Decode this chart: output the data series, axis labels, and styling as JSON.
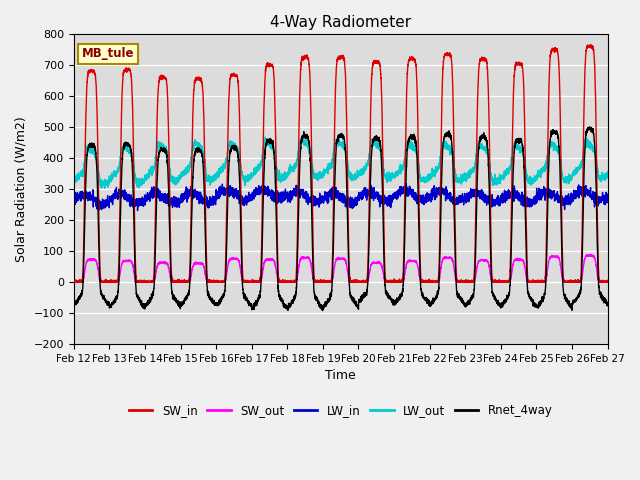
{
  "title": "4-Way Radiometer",
  "xlabel": "Time",
  "ylabel": "Solar Radiation (W/m2)",
  "ylim": [
    -200,
    800
  ],
  "xlim": [
    0,
    15
  ],
  "bg_color": "#dcdcdc",
  "fig_bg": "#f0f0f0",
  "annotation_label": "MB_tule",
  "annotation_bg": "#ffffcc",
  "annotation_border": "#aa8800",
  "x_tick_labels": [
    "Feb 12",
    "Feb 13",
    "Feb 14",
    "Feb 15",
    "Feb 16",
    "Feb 17",
    "Feb 18",
    "Feb 19",
    "Feb 20",
    "Feb 21",
    "Feb 22",
    "Feb 23",
    "Feb 24",
    "Feb 25",
    "Feb 26",
    "Feb 27"
  ],
  "yticks": [
    -200,
    -100,
    0,
    100,
    200,
    300,
    400,
    500,
    600,
    700,
    800
  ],
  "series": {
    "SW_in": {
      "color": "#dd0000",
      "lw": 1.0
    },
    "SW_out": {
      "color": "#ff00ff",
      "lw": 1.0
    },
    "LW_in": {
      "color": "#0000cc",
      "lw": 1.0
    },
    "LW_out": {
      "color": "#00cccc",
      "lw": 1.0
    },
    "Rnet_4way": {
      "color": "#000000",
      "lw": 1.0
    }
  },
  "legend_entries": [
    "SW_in",
    "SW_out",
    "LW_in",
    "LW_out",
    "Rnet_4way"
  ],
  "legend_colors": [
    "#dd0000",
    "#ff00ff",
    "#0000cc",
    "#00cccc",
    "#000000"
  ],
  "sw_in_peaks": [
    680,
    685,
    660,
    655,
    668,
    700,
    725,
    725,
    710,
    720,
    735,
    720,
    705,
    748,
    760
  ],
  "sw_out_peaks": [
    72,
    68,
    62,
    60,
    75,
    72,
    78,
    75,
    62,
    68,
    78,
    70,
    72,
    82,
    85
  ],
  "lw_in_base": [
    265,
    268,
    270,
    272,
    280,
    285,
    275,
    270,
    275,
    280,
    278,
    272,
    270,
    275,
    278
  ],
  "lw_out_base": [
    335,
    340,
    345,
    350,
    352,
    355,
    360,
    358,
    355,
    350,
    348,
    345,
    345,
    350,
    355
  ],
  "night_rnet": [
    -85,
    -95,
    -90,
    -85,
    -88,
    -100,
    -100,
    -95,
    -75,
    -80,
    -85,
    -90,
    -90,
    -95,
    -80
  ]
}
